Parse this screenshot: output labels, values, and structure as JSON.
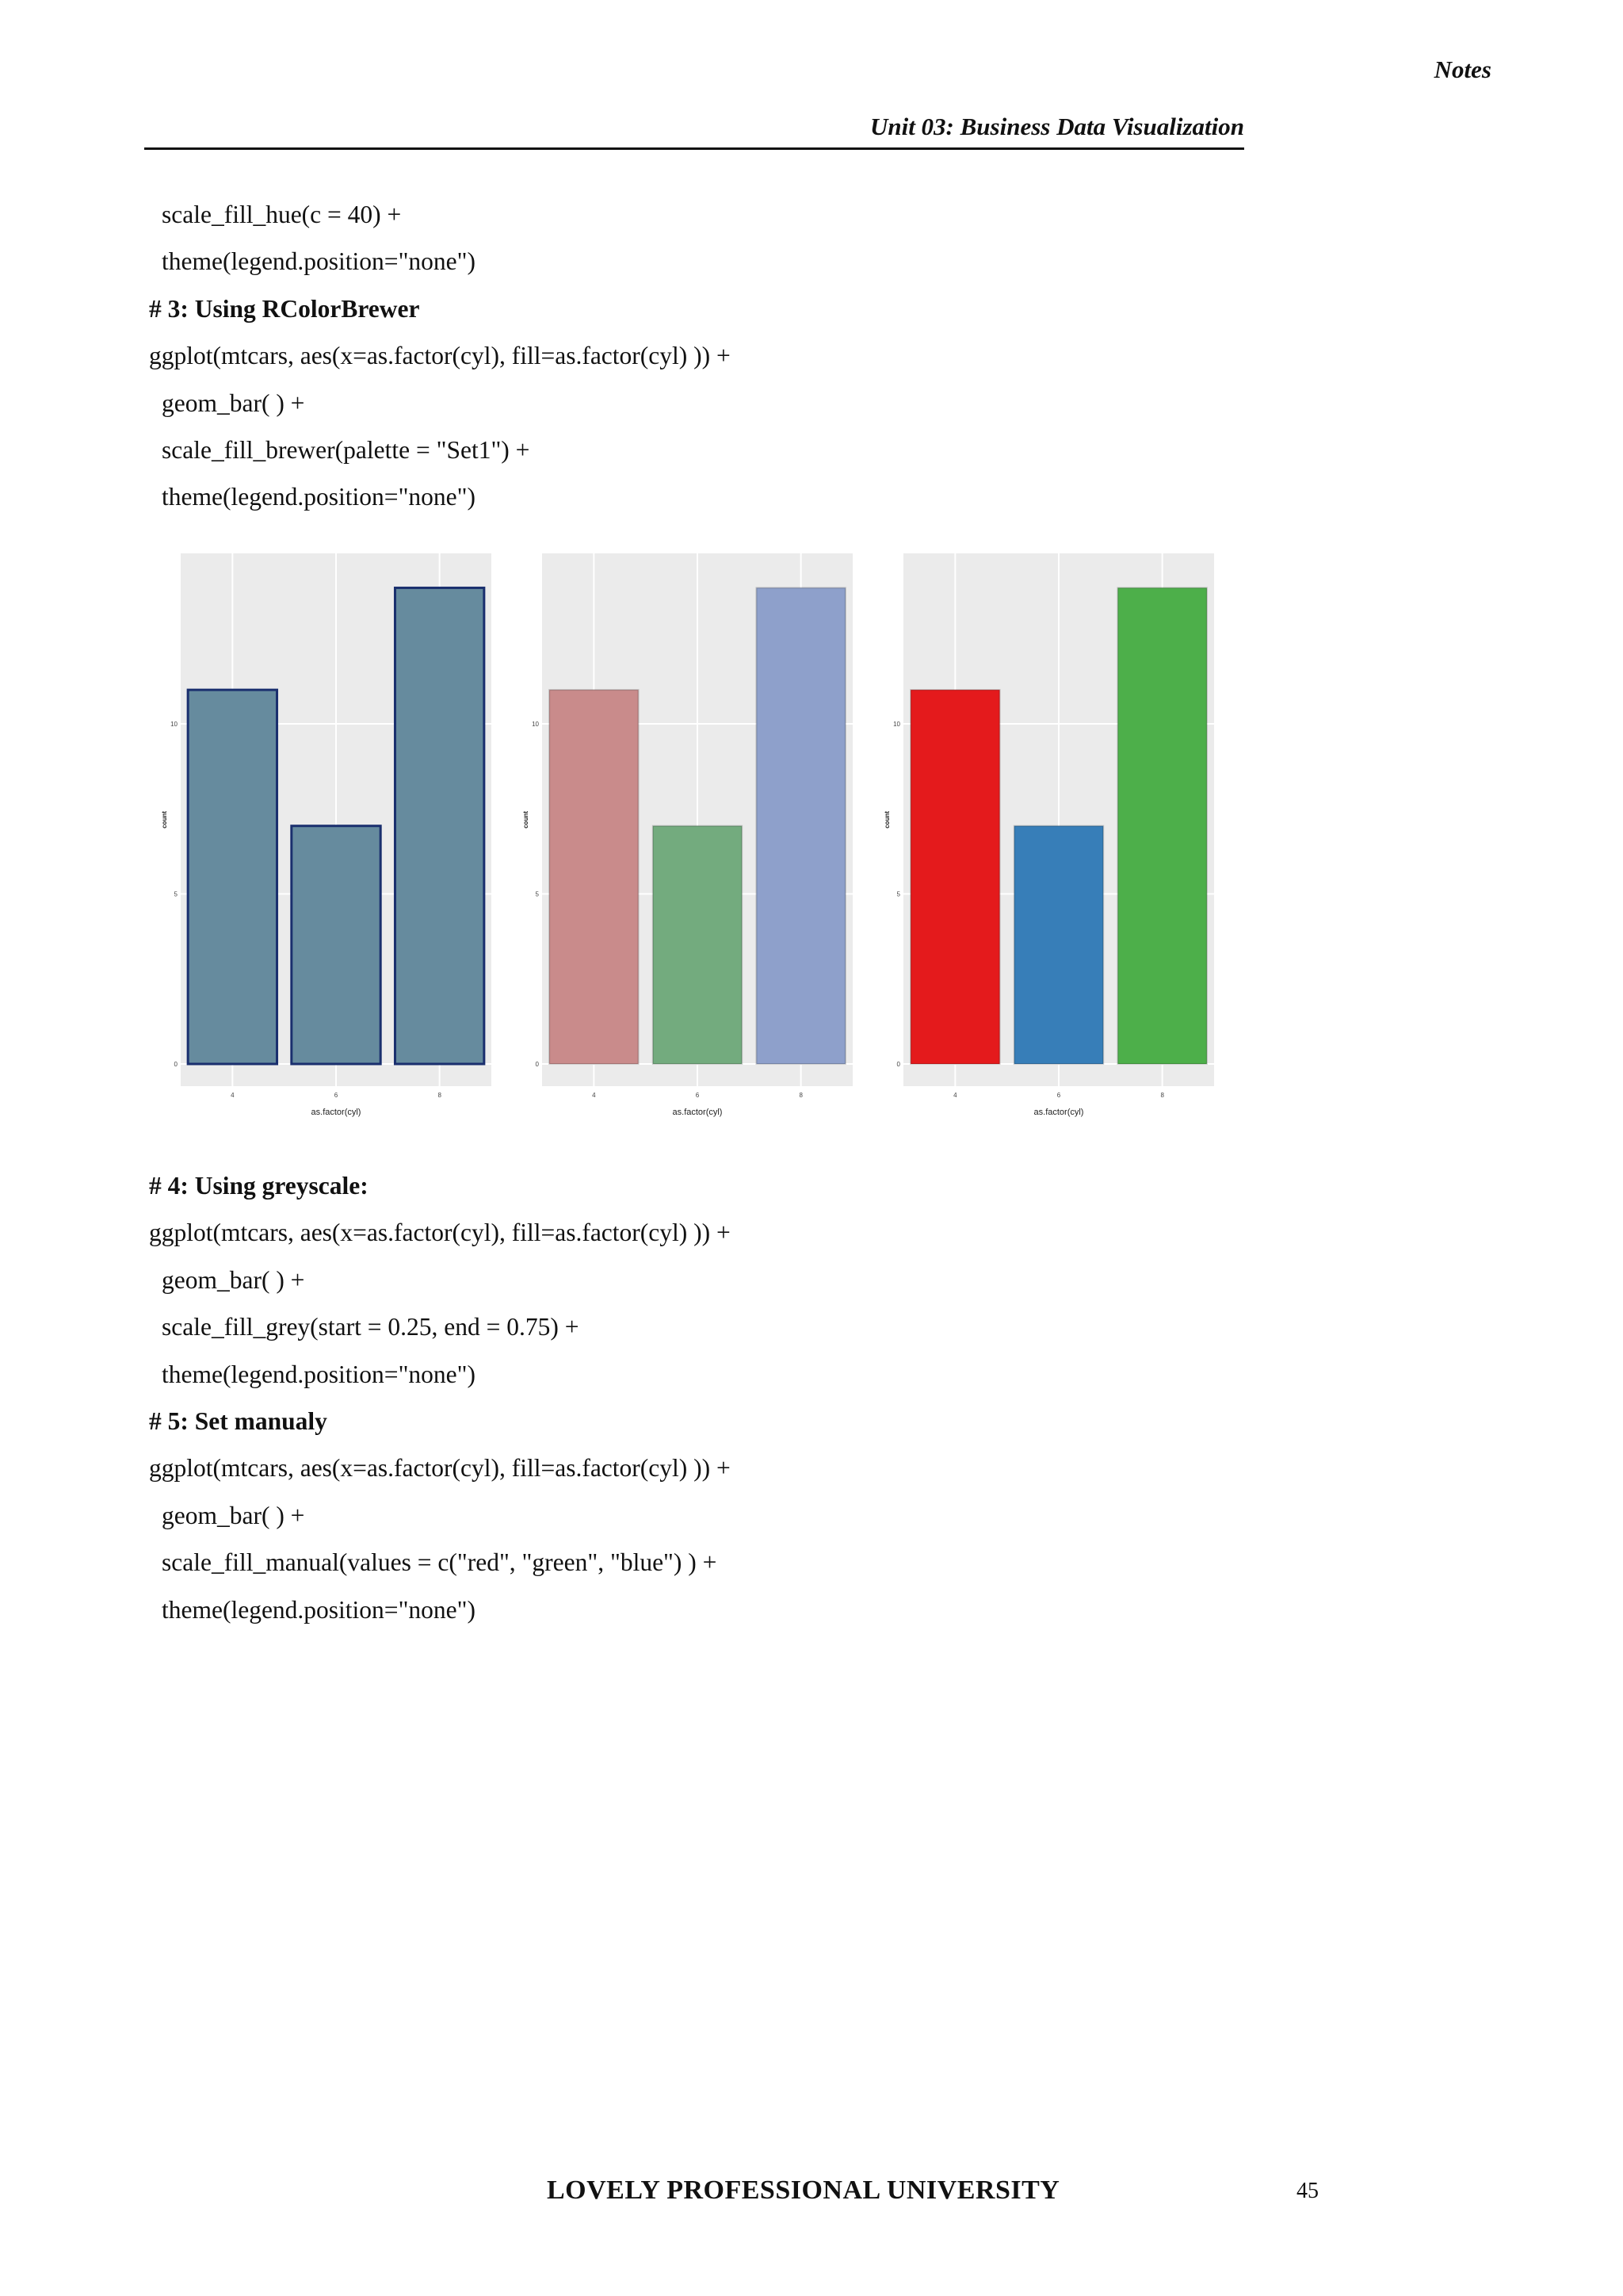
{
  "header": {
    "notes": "Notes",
    "unit_title": "Unit 03: Business Data Visualization"
  },
  "code_block_1": [
    {
      "text": "scale_fill_hue(c = 40) +",
      "style": "indent"
    },
    {
      "text": "theme(legend.position=\"none\")",
      "style": "indent"
    },
    {
      "text": "# 3: Using RColorBrewer",
      "style": "heading"
    },
    {
      "text": "ggplot(mtcars, aes(x=as.factor(cyl), fill=as.factor(cyl) )) +",
      "style": "plain"
    },
    {
      "text": "geom_bar( ) +",
      "style": "indent"
    },
    {
      "text": "scale_fill_brewer(palette = \"Set1\") +",
      "style": "indent"
    },
    {
      "text": "theme(legend.position=\"none\")",
      "style": "indent"
    }
  ],
  "code_block_2": [
    {
      "text": "# 4: Using greyscale:",
      "style": "heading"
    },
    {
      "text": "ggplot(mtcars, aes(x=as.factor(cyl), fill=as.factor(cyl) )) +",
      "style": "plain"
    },
    {
      "text": "geom_bar( ) +",
      "style": "indent"
    },
    {
      "text": "scale_fill_grey(start = 0.25, end = 0.75) +",
      "style": "indent"
    },
    {
      "text": "theme(legend.position=\"none\")",
      "style": "indent"
    },
    {
      "text": "# 5: Set manualy",
      "style": "heading"
    },
    {
      "text": "ggplot(mtcars, aes(x=as.factor(cyl), fill=as.factor(cyl) )) +",
      "style": "plain"
    },
    {
      "text": "geom_bar( ) +",
      "style": "indent"
    },
    {
      "text": "scale_fill_manual(values = c(\"red\", \"green\", \"blue\") ) +",
      "style": "indent"
    },
    {
      "text": "theme(legend.position=\"none\")",
      "style": "indent"
    }
  ],
  "chart_data": [
    {
      "type": "bar",
      "categories": [
        "4",
        "6",
        "8"
      ],
      "values": [
        11,
        7,
        14
      ],
      "xlabel": "as.factor(cyl)",
      "ylabel": "count",
      "yticks": [
        0,
        5,
        10
      ],
      "ylim": [
        0,
        14.5
      ],
      "grid": true,
      "colors": [
        "#668b9e",
        "#668b9e",
        "#668b9e"
      ],
      "outline": "#1a2f6e"
    },
    {
      "type": "bar",
      "categories": [
        "4",
        "6",
        "8"
      ],
      "values": [
        11,
        7,
        14
      ],
      "xlabel": "as.factor(cyl)",
      "ylabel": "count",
      "yticks": [
        0,
        5,
        10
      ],
      "ylim": [
        0,
        14.5
      ],
      "grid": true,
      "colors": [
        "#c98b8b",
        "#73ab7e",
        "#8ea0cb"
      ],
      "outline": ""
    },
    {
      "type": "bar",
      "categories": [
        "4",
        "6",
        "8"
      ],
      "values": [
        11,
        7,
        14
      ],
      "xlabel": "as.factor(cyl)",
      "ylabel": "count",
      "yticks": [
        0,
        5,
        10
      ],
      "ylim": [
        0,
        14.5
      ],
      "grid": true,
      "colors": [
        "#e41a1c",
        "#377eb8",
        "#4daf4a"
      ],
      "outline": ""
    }
  ],
  "footer": {
    "university": "LOVELY PROFESSIONAL UNIVERSITY",
    "page_number": "45"
  }
}
